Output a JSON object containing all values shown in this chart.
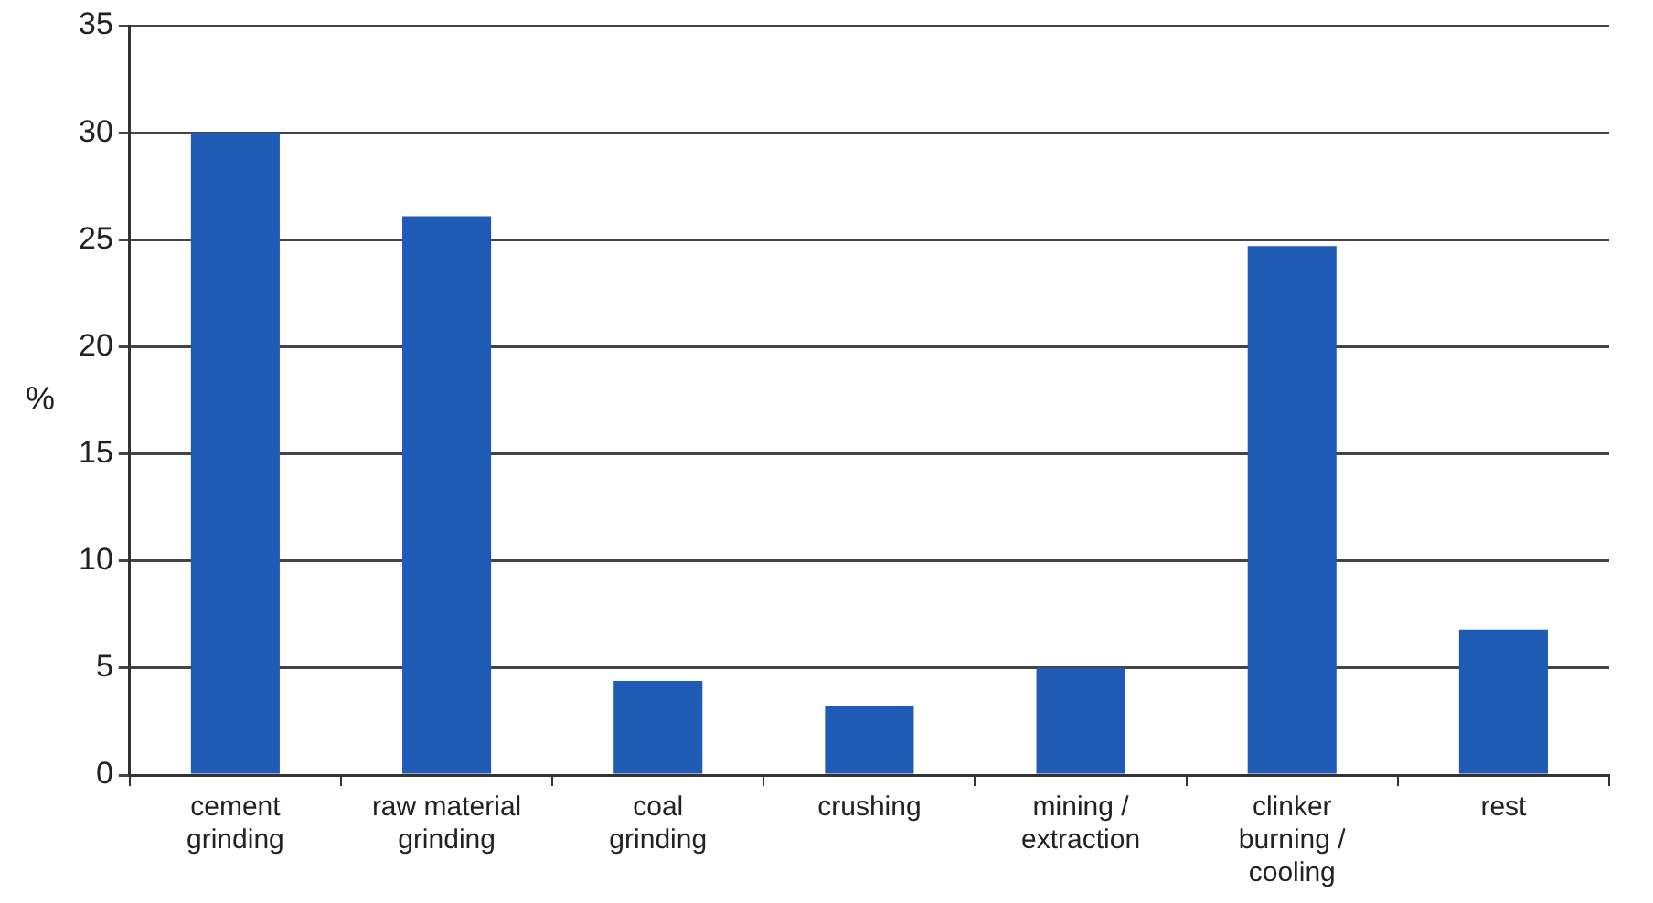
{
  "chart_data": {
    "type": "bar",
    "ylabel": "%",
    "categories": [
      "cement grinding",
      "raw material grinding",
      "coal grinding",
      "crushing",
      "mining / extraction",
      "clinker burning / cooling",
      "rest"
    ],
    "values": [
      30,
      26.1,
      4.4,
      3.2,
      5.0,
      24.7,
      6.8
    ],
    "color": "#1f5bb5",
    "ylim": [
      0,
      35
    ],
    "yticks": [
      0,
      5,
      10,
      15,
      20,
      25,
      30,
      35
    ],
    "grid": "y",
    "legend": false
  }
}
